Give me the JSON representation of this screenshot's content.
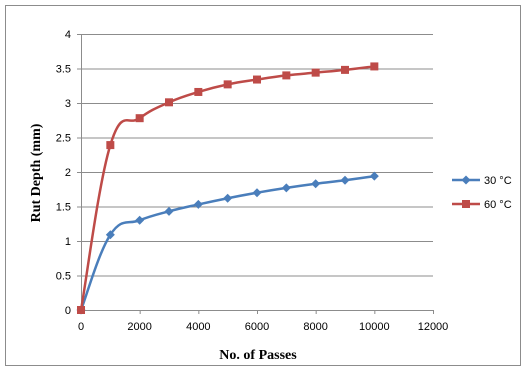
{
  "chart_data": {
    "type": "line",
    "xlabel": "No. of Passes",
    "ylabel": "Rut Depth (mm)",
    "xlim": [
      0,
      12000
    ],
    "ylim": [
      0,
      4
    ],
    "x_ticks": [
      0,
      2000,
      4000,
      6000,
      8000,
      10000,
      12000
    ],
    "y_ticks": [
      0,
      0.5,
      1,
      1.5,
      2,
      2.5,
      3,
      3.5,
      4
    ],
    "x_tick_labels": [
      "0",
      "2000",
      "4000",
      "6000",
      "8000",
      "10000",
      "12000"
    ],
    "y_tick_labels": [
      "0",
      "0.5",
      "1",
      "1.5",
      "2",
      "2.5",
      "3",
      "3.5",
      "4"
    ],
    "grid": "horizontal",
    "legend_position": "right",
    "x": [
      0,
      1000,
      2000,
      3000,
      4000,
      5000,
      6000,
      7000,
      8000,
      9000,
      10000
    ],
    "series": [
      {
        "name": "30 °C",
        "values": [
          0,
          1.09,
          1.3,
          1.43,
          1.53,
          1.62,
          1.7,
          1.77,
          1.83,
          1.88,
          1.94
        ],
        "color": "#4a7ebb",
        "marker": "diamond"
      },
      {
        "name": "60 °C",
        "values": [
          0,
          2.39,
          2.78,
          3.01,
          3.16,
          3.27,
          3.34,
          3.4,
          3.44,
          3.48,
          3.53
        ],
        "color": "#be4b48",
        "marker": "square"
      }
    ]
  }
}
